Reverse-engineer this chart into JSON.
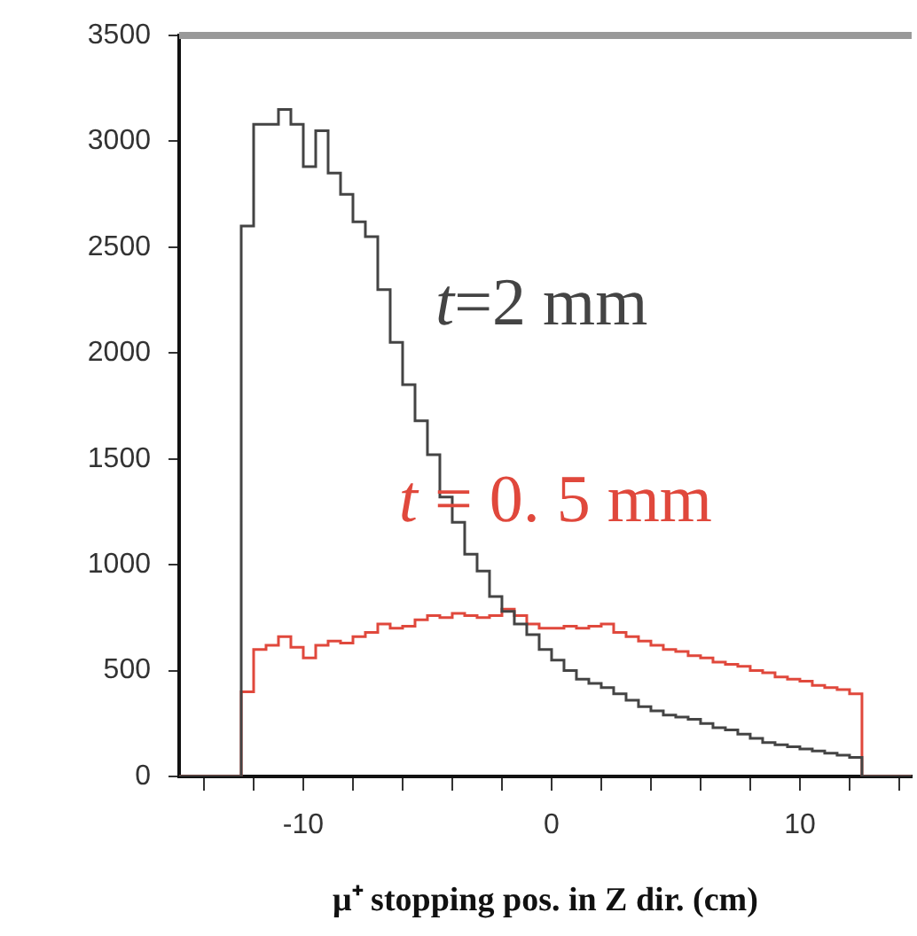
{
  "chart_data": {
    "type": "histogram",
    "xlabel": "μ⁺ stopping pos. in Z dir. (cm)",
    "bins": [
      -15,
      -14.5,
      -14,
      -13.5,
      -13,
      -12.5,
      -12,
      -11.5,
      -11,
      -10.5,
      -10,
      -9.5,
      -9,
      -8.5,
      -8,
      -7.5,
      -7,
      -6.5,
      -6,
      -5.5,
      -5,
      -4.5,
      -4,
      -3.5,
      -3,
      -2.5,
      -2,
      -1.5,
      -1,
      -0.5,
      0,
      0.5,
      1,
      1.5,
      2,
      2.5,
      3,
      3.5,
      4,
      4.5,
      5,
      5.5,
      6,
      6.5,
      7,
      7.5,
      8,
      8.5,
      9,
      9.5,
      10,
      10.5,
      11,
      11.5,
      12,
      12.5,
      13,
      13.5,
      14,
      14.5
    ],
    "series": [
      {
        "name": "t=2 mm",
        "color": "#444444",
        "values": [
          0,
          0,
          0,
          0,
          0,
          2600,
          3080,
          3080,
          3150,
          3080,
          2880,
          3050,
          2850,
          2750,
          2620,
          2550,
          2300,
          2050,
          1850,
          1680,
          1520,
          1320,
          1200,
          1050,
          970,
          850,
          780,
          720,
          670,
          600,
          550,
          500,
          460,
          440,
          420,
          390,
          360,
          330,
          310,
          290,
          280,
          270,
          250,
          230,
          220,
          200,
          180,
          160,
          150,
          140,
          130,
          120,
          110,
          100,
          90,
          0,
          0,
          0,
          0
        ]
      },
      {
        "name": "t = 0. 5 mm",
        "color": "#e0483c",
        "values": [
          0,
          0,
          0,
          0,
          0,
          400,
          600,
          620,
          660,
          610,
          560,
          620,
          640,
          630,
          660,
          680,
          720,
          700,
          710,
          740,
          760,
          750,
          770,
          760,
          750,
          760,
          790,
          760,
          720,
          700,
          700,
          710,
          700,
          710,
          720,
          680,
          660,
          640,
          620,
          600,
          590,
          570,
          560,
          540,
          530,
          520,
          500,
          490,
          470,
          460,
          450,
          430,
          420,
          410,
          390,
          0,
          0,
          0,
          0
        ]
      }
    ],
    "xlim": [
      -15,
      14.5
    ],
    "xticks": [
      {
        "value": -14,
        "label": null
      },
      {
        "value": -12,
        "label": null
      },
      -10,
      {
        "value": -8,
        "label": null
      },
      {
        "value": -6,
        "label": null
      },
      {
        "value": -4,
        "label": null
      },
      {
        "value": -2,
        "label": null
      },
      0,
      {
        "value": 2,
        "label": null
      },
      {
        "value": 4,
        "label": null
      },
      {
        "value": 6,
        "label": null
      },
      {
        "value": 8,
        "label": null
      },
      10,
      {
        "value": 12,
        "label": null
      },
      {
        "value": 14,
        "label": null
      }
    ],
    "ylim": [
      0,
      3500
    ],
    "yticks": [
      0,
      500,
      1000,
      1500,
      2000,
      2500,
      3000,
      3500
    ],
    "legend": false
  }
}
